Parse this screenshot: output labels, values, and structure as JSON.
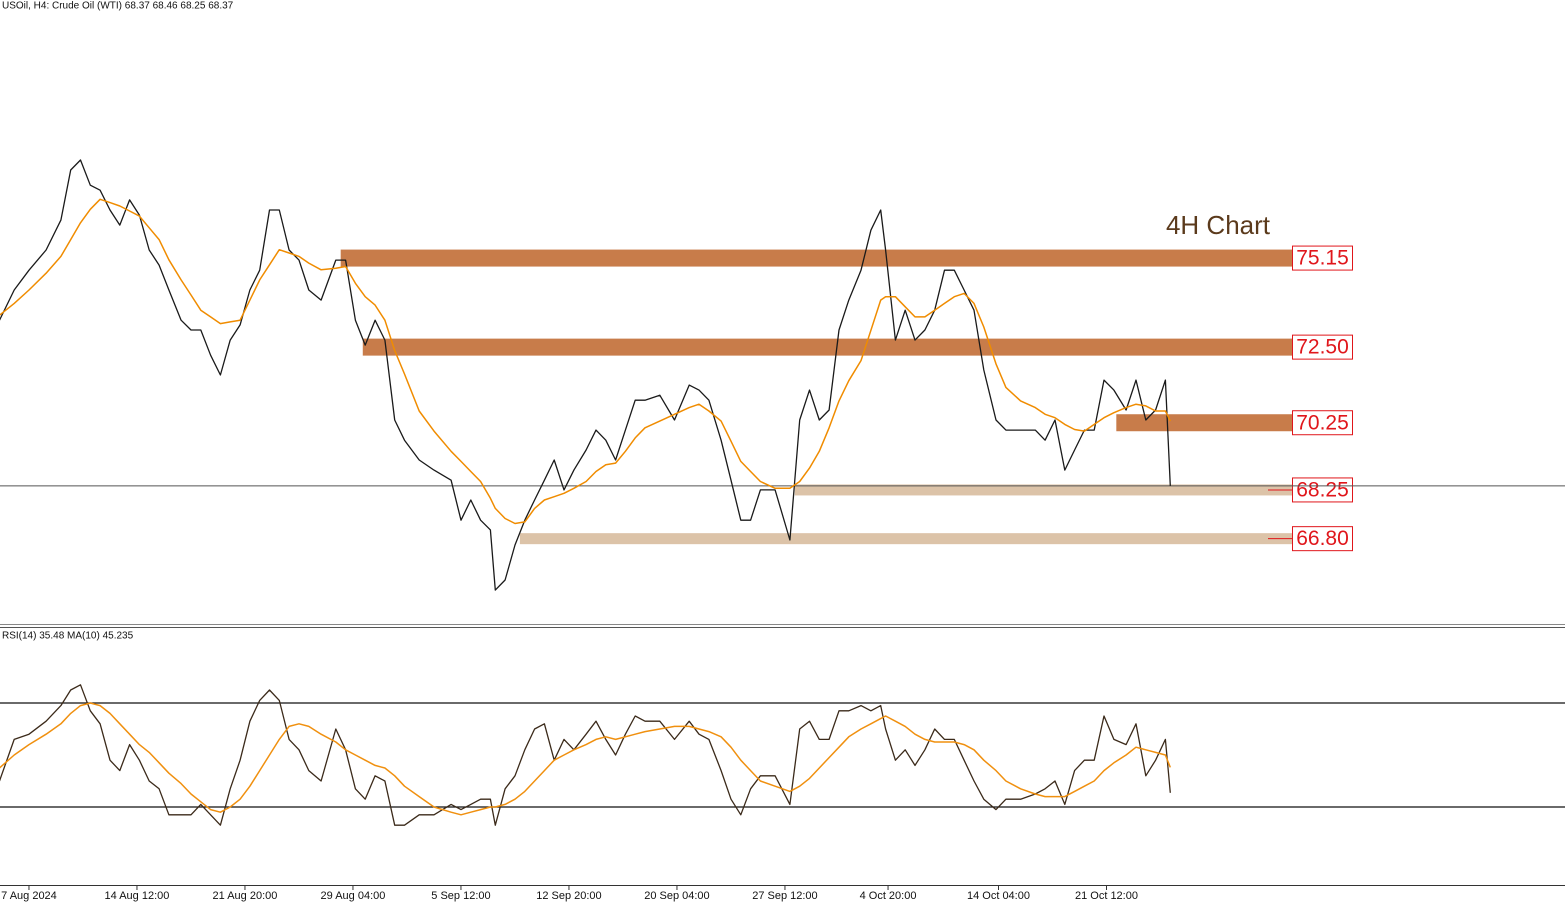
{
  "chart_data": [
    {
      "type": "line",
      "title": "USOil, H4:  Crude Oil (WTI)  68.37 68.46 68.25 68.37",
      "annotation": "4H Chart",
      "x": [
        -12,
        -6,
        0,
        7,
        13,
        17,
        21,
        25,
        29,
        33,
        37,
        41,
        45,
        49,
        53,
        57,
        62,
        66,
        70,
        74,
        78,
        82,
        86,
        90,
        94,
        98,
        102,
        106,
        110,
        114,
        119,
        125,
        129,
        133,
        137,
        141,
        145,
        149,
        153,
        159,
        165,
        172,
        176,
        180,
        184,
        188,
        190,
        194,
        198,
        202,
        206,
        210,
        214,
        218,
        222,
        227,
        231,
        235,
        239,
        243,
        247,
        251,
        257,
        263,
        269,
        273,
        277,
        282,
        286,
        290,
        294,
        298,
        304,
        310,
        314,
        318,
        322,
        326,
        330,
        334,
        339,
        343,
        347,
        349,
        353,
        357,
        361,
        365,
        369,
        373,
        377,
        381,
        385,
        389,
        394,
        398,
        404,
        410,
        414,
        418,
        422,
        426,
        430,
        434,
        438,
        442,
        447,
        451,
        455,
        459,
        463,
        465
      ],
      "xlim": [
        -11.8,
        625.8
      ],
      "ylim": [
        64.32,
        82.83
      ],
      "series": [
        {
          "color": "#1a1a1a",
          "values": [
            73.3,
            74.2,
            74.79,
            75.39,
            76.28,
            77.77,
            78.07,
            77.32,
            77.17,
            76.58,
            76.13,
            76.88,
            76.43,
            75.39,
            74.94,
            74.2,
            73.3,
            73.01,
            73.01,
            72.26,
            71.67,
            72.71,
            73.16,
            74.2,
            74.79,
            76.58,
            76.58,
            75.39,
            75.09,
            74.2,
            73.9,
            75.09,
            75.09,
            73.3,
            72.56,
            73.3,
            72.71,
            70.33,
            69.73,
            69.14,
            68.84,
            68.54,
            67.35,
            67.95,
            67.35,
            67.06,
            65.27,
            65.57,
            66.61,
            67.35,
            67.95,
            68.54,
            69.14,
            68.25,
            68.84,
            69.44,
            70.03,
            69.73,
            69.14,
            70.03,
            70.92,
            70.92,
            71.07,
            70.33,
            71.37,
            71.22,
            70.92,
            69.73,
            68.54,
            67.35,
            67.35,
            68.25,
            68.25,
            66.76,
            70.33,
            71.22,
            70.33,
            70.63,
            73.01,
            73.9,
            74.79,
            75.98,
            76.58,
            75.39,
            72.71,
            73.6,
            72.71,
            73.01,
            73.6,
            74.79,
            74.79,
            74.2,
            73.6,
            71.82,
            70.33,
            70.03,
            70.03,
            70.03,
            69.73,
            70.33,
            68.84,
            69.44,
            70.03,
            70.03,
            71.52,
            71.22,
            70.63,
            71.52,
            70.33,
            70.63,
            71.52,
            68.37
          ]
        },
        {
          "color": "#f08c00",
          "values": [
            73.45,
            73.8,
            74.2,
            74.7,
            75.2,
            75.7,
            76.2,
            76.6,
            76.9,
            76.8,
            76.7,
            76.55,
            76.4,
            76.05,
            75.7,
            75.1,
            74.5,
            74.05,
            73.6,
            73.4,
            73.2,
            73.25,
            73.3,
            73.9,
            74.5,
            74.95,
            75.4,
            75.3,
            75.2,
            75.0,
            74.8,
            74.85,
            74.9,
            74.4,
            74.0,
            73.75,
            73.3,
            72.4,
            71.7,
            70.6,
            70.0,
            69.4,
            69.1,
            68.8,
            68.5,
            68.0,
            67.7,
            67.4,
            67.25,
            67.3,
            67.7,
            67.95,
            68.05,
            68.15,
            68.3,
            68.5,
            68.8,
            69.0,
            69.05,
            69.4,
            69.8,
            70.1,
            70.3,
            70.5,
            70.7,
            70.8,
            70.6,
            70.3,
            69.7,
            69.1,
            68.8,
            68.5,
            68.3,
            68.3,
            68.5,
            68.9,
            69.4,
            70.1,
            70.9,
            71.5,
            72.1,
            73.0,
            73.9,
            74.0,
            74.0,
            73.7,
            73.4,
            73.4,
            73.6,
            73.8,
            74.0,
            74.1,
            73.8,
            73.1,
            72.0,
            71.3,
            70.9,
            70.7,
            70.5,
            70.4,
            70.2,
            70.05,
            70.0,
            70.2,
            70.4,
            70.55,
            70.7,
            70.8,
            70.75,
            70.6,
            70.6,
            70.3
          ]
        }
      ],
      "zones": [
        {
          "value": 75.15,
          "label": "75.15",
          "start": 127,
          "color": "#c87c4a",
          "weight": "major"
        },
        {
          "value": 72.5,
          "label": "72.50",
          "start": 136,
          "color": "#c87c4a",
          "weight": "major"
        },
        {
          "value": 70.25,
          "label": "70.25",
          "start": 443,
          "color": "#c87c4a",
          "weight": "major"
        },
        {
          "value": 68.25,
          "label": "68.25",
          "start": 312,
          "color": "#dcc3a8",
          "weight": "minor"
        },
        {
          "value": 66.8,
          "label": "66.80",
          "start": 200,
          "color": "#dcc3a8",
          "weight": "minor"
        }
      ]
    },
    {
      "type": "line",
      "title": "RSI(14) 35.48 MA(10) 45.235",
      "x": [
        -12,
        -6,
        0,
        7,
        13,
        17,
        21,
        25,
        29,
        33,
        37,
        41,
        45,
        49,
        53,
        57,
        62,
        66,
        70,
        74,
        78,
        82,
        86,
        90,
        94,
        98,
        102,
        106,
        110,
        114,
        119,
        125,
        129,
        133,
        137,
        141,
        145,
        149,
        153,
        159,
        165,
        172,
        176,
        180,
        184,
        188,
        190,
        194,
        198,
        202,
        206,
        210,
        214,
        218,
        222,
        227,
        231,
        235,
        239,
        243,
        247,
        251,
        257,
        263,
        269,
        273,
        277,
        282,
        286,
        290,
        294,
        298,
        304,
        310,
        314,
        318,
        322,
        326,
        330,
        334,
        339,
        343,
        347,
        349,
        353,
        357,
        361,
        365,
        369,
        373,
        377,
        381,
        385,
        389,
        394,
        398,
        404,
        410,
        414,
        418,
        422,
        426,
        430,
        434,
        438,
        442,
        447,
        451,
        455,
        459,
        463,
        465
      ],
      "xlim": [
        -11.8,
        625.8
      ],
      "ylim": [
        0,
        100
      ],
      "levels": [
        70,
        30
      ],
      "xticks": [
        {
          "value": 0,
          "label": "7 Aug 2024"
        },
        {
          "value": 44,
          "label": "14 Aug 12:00"
        },
        {
          "value": 88,
          "label": "21 Aug 20:00"
        },
        {
          "value": 132,
          "label": "29 Aug 04:00"
        },
        {
          "value": 176,
          "label": "5 Sep 12:00"
        },
        {
          "value": 220,
          "label": "12 Sep 20:00"
        },
        {
          "value": 264,
          "label": "20 Sep 04:00"
        },
        {
          "value": 308,
          "label": "27 Sep 12:00"
        },
        {
          "value": 350,
          "label": "4 Oct 20:00"
        },
        {
          "value": 395,
          "label": "14 Oct 04:00"
        },
        {
          "value": 439,
          "label": "21 Oct 12:00"
        }
      ],
      "series": [
        {
          "color": "#3b2a1a",
          "values": [
            40,
            56,
            58,
            63,
            69,
            75,
            77,
            67,
            62,
            48,
            44,
            54,
            48,
            40,
            37,
            27,
            27,
            27,
            31,
            27,
            23,
            37,
            48,
            63,
            71,
            75,
            71,
            56,
            52,
            44,
            40,
            60,
            52,
            37,
            33,
            42,
            40,
            23,
            23,
            27,
            27,
            31,
            29,
            31,
            33,
            33,
            23,
            37,
            42,
            52,
            60,
            62,
            48,
            56,
            52,
            58,
            63,
            56,
            50,
            58,
            65,
            63,
            63,
            56,
            63,
            58,
            56,
            44,
            33,
            27,
            37,
            42,
            42,
            31,
            60,
            63,
            56,
            56,
            67,
            67,
            69,
            67,
            69,
            60,
            48,
            52,
            46,
            52,
            60,
            56,
            56,
            48,
            40,
            33,
            29,
            33,
            33,
            35,
            37,
            40,
            31,
            44,
            48,
            48,
            65,
            56,
            54,
            62,
            42,
            48,
            56,
            35.48
          ]
        },
        {
          "color": "#f0900f",
          "values": [
            45,
            50,
            54,
            58,
            62,
            66,
            69,
            70,
            69,
            66,
            62,
            58,
            54,
            51,
            47,
            43,
            39,
            35,
            32,
            29,
            28,
            30,
            33,
            38,
            44,
            50,
            56,
            61,
            62,
            61,
            58,
            55,
            52,
            50,
            48,
            46,
            45,
            42,
            38,
            34,
            30,
            28,
            27,
            28,
            29,
            30,
            30,
            31,
            33,
            36,
            40,
            44,
            48,
            50,
            52,
            54,
            56,
            57,
            56,
            57,
            58,
            59,
            60,
            61,
            61,
            60,
            59,
            57,
            53,
            48,
            44,
            40,
            38,
            36,
            38,
            41,
            45,
            49,
            53,
            57,
            60,
            62,
            64,
            65,
            63,
            61,
            58,
            56,
            55,
            55,
            55,
            54,
            52,
            48,
            44,
            40,
            37,
            35,
            34,
            34,
            34,
            36,
            38,
            40,
            44,
            47,
            50,
            53,
            52,
            51,
            50,
            45.235
          ]
        }
      ]
    }
  ]
}
